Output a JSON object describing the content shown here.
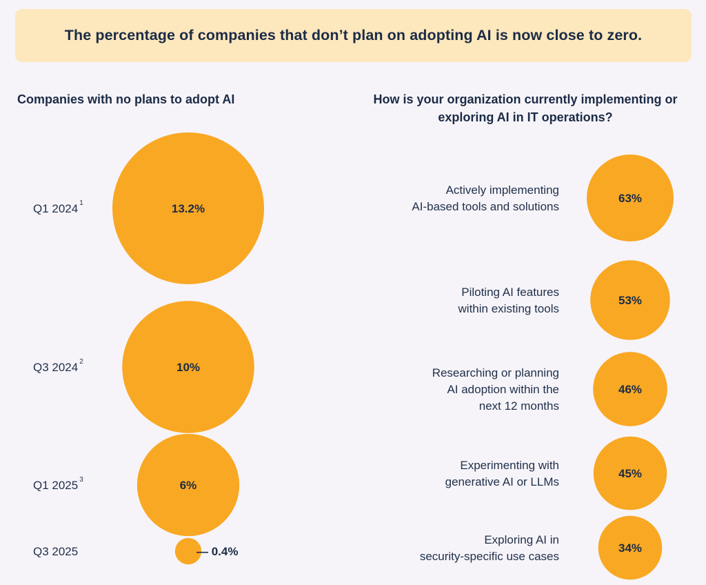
{
  "header": {
    "text": "The percentage of companies that don’t plan on adopting AI is now close to zero."
  },
  "colors": {
    "bubble": "#f9a824",
    "banner": "#fde7bd",
    "text": "#1f2f4a"
  },
  "chart_data": [
    {
      "type": "bubble",
      "title": "Companies with no plans to adopt AI",
      "unit": "%",
      "points": [
        {
          "label": "Q1 2024",
          "footnote": "1",
          "value": 13.2,
          "display": "13.2%"
        },
        {
          "label": "Q3 2024",
          "footnote": "2",
          "value": 10,
          "display": "10%"
        },
        {
          "label": "Q1 2025",
          "footnote": "3",
          "value": 6,
          "display": "6%"
        },
        {
          "label": "Q3 2025",
          "footnote": "",
          "value": 0.4,
          "display": "— 0.4%"
        }
      ]
    },
    {
      "type": "bubble",
      "title": "How is your organization currently implementing or exploring AI in IT operations?",
      "unit": "%",
      "points": [
        {
          "label": "Actively implementing AI-based tools and solutions",
          "label_lines": [
            "Actively implementing",
            "AI-based tools and solutions"
          ],
          "value": 63,
          "display": "63%"
        },
        {
          "label": "Piloting AI features within existing tools",
          "label_lines": [
            "Piloting AI features",
            "within existing tools"
          ],
          "value": 53,
          "display": "53%"
        },
        {
          "label": "Researching or planning AI adoption within the next 12 months",
          "label_lines": [
            "Researching or planning",
            "AI adoption within the",
            "next 12 months"
          ],
          "value": 46,
          "display": "46%"
        },
        {
          "label": "Experimenting with generative AI or LLMs",
          "label_lines": [
            "Experimenting with",
            "generative AI or LLMs"
          ],
          "value": 45,
          "display": "45%"
        },
        {
          "label": "Exploring AI in security-specific use cases",
          "label_lines": [
            "Exploring AI in",
            "security-specific use cases"
          ],
          "value": 34,
          "display": "34%"
        }
      ]
    }
  ]
}
